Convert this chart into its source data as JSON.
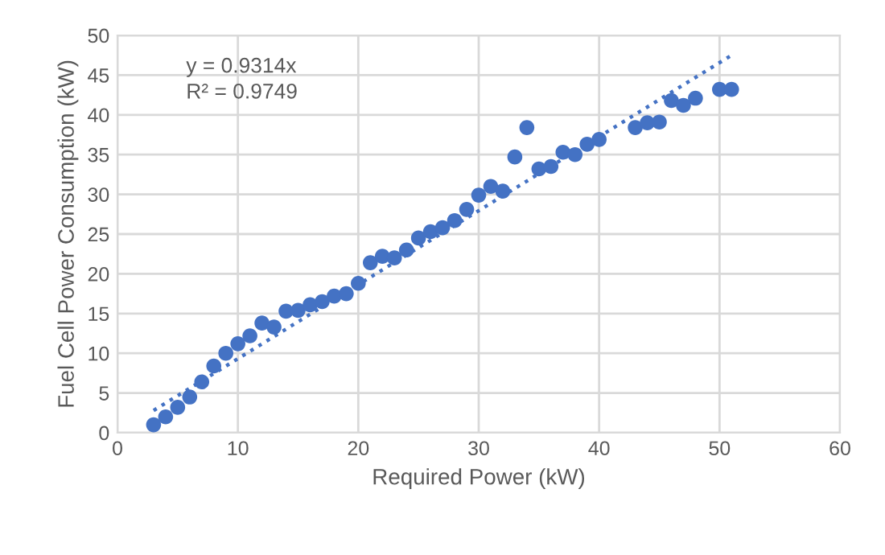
{
  "chart_data": {
    "type": "scatter",
    "xlabel": "Required Power (kW)",
    "ylabel": "Fuel Cell Power Consumption (kW)",
    "xlim": [
      0,
      60
    ],
    "xticks": [
      0,
      10,
      20,
      30,
      40,
      50,
      60
    ],
    "ylim": [
      0,
      50
    ],
    "yticks": [
      0,
      5,
      10,
      15,
      20,
      25,
      30,
      35,
      40,
      45,
      50
    ],
    "grid": true,
    "series": [
      {
        "marker": "circle",
        "color": "#4472c4",
        "x": [
          3,
          4,
          5,
          6,
          7,
          8,
          9,
          10,
          11,
          12,
          13,
          14,
          15,
          16,
          17,
          18,
          19,
          20,
          21,
          22,
          23,
          24,
          25,
          26,
          27,
          28,
          29,
          30,
          31,
          32,
          33,
          34,
          35,
          36,
          37,
          38,
          39,
          40,
          43,
          44,
          45,
          46,
          47,
          48,
          50,
          51
        ],
        "values": [
          1.0,
          2.0,
          3.2,
          4.5,
          6.4,
          8.4,
          10.0,
          11.2,
          12.2,
          13.8,
          13.3,
          15.3,
          15.4,
          16.1,
          16.5,
          17.2,
          17.5,
          18.8,
          21.4,
          22.2,
          22.0,
          23.0,
          24.5,
          25.3,
          25.8,
          26.7,
          28.1,
          29.9,
          31.0,
          30.4,
          34.7,
          38.4,
          33.2,
          33.5,
          35.3,
          35.0,
          36.3,
          36.9,
          38.4,
          39.0,
          39.1,
          41.8,
          41.2,
          42.1,
          43.2,
          43.2
        ]
      },
      {
        "type": "line",
        "color": "#4472c4",
        "line_style": "dotted",
        "marker": "none",
        "x": [
          3,
          51
        ],
        "values": [
          2.8,
          47.5
        ]
      }
    ],
    "annotations": [
      {
        "text": "y = 0.9314x"
      },
      {
        "text": "R² = 0.9749"
      }
    ]
  }
}
